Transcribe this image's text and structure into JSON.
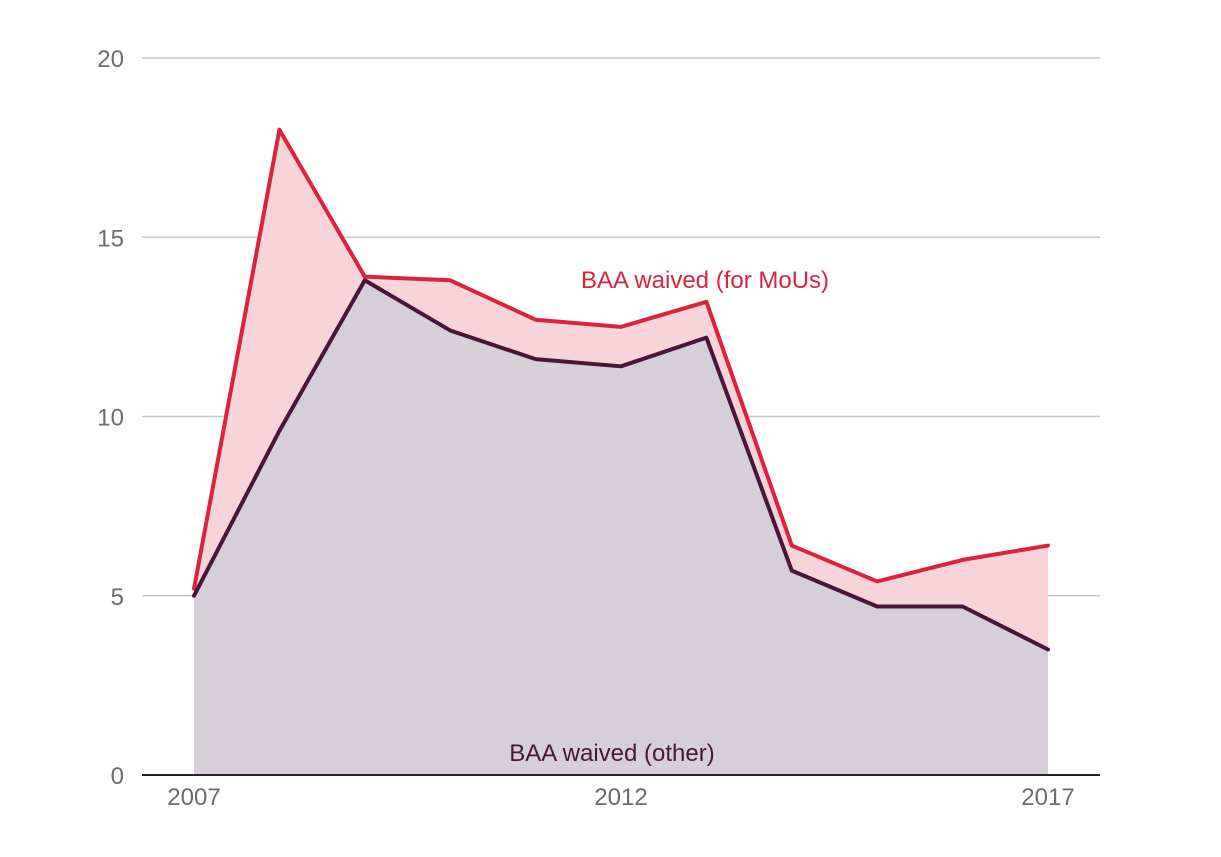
{
  "chart_data": {
    "type": "area",
    "x": [
      2007,
      2008,
      2009,
      2010,
      2011,
      2012,
      2013,
      2014,
      2015,
      2016,
      2017
    ],
    "series": [
      {
        "name": "BAA waived (for MoUs)",
        "values": [
          5.2,
          18.0,
          13.9,
          13.8,
          12.7,
          12.5,
          13.2,
          6.4,
          5.4,
          6.0,
          6.4
        ],
        "color": "#d9233f",
        "fill": "#f6d4da"
      },
      {
        "name": "BAA waived (other)",
        "values": [
          5.0,
          9.6,
          13.8,
          12.4,
          11.6,
          11.4,
          12.2,
          5.7,
          4.7,
          4.7,
          3.5
        ],
        "color": "#4a1536",
        "fill": "#d7cfd8"
      }
    ],
    "ylim": [
      0,
      20
    ],
    "yticks": [
      "0",
      "5",
      "10",
      "15",
      "20"
    ],
    "xticks": [
      "2007",
      "2012",
      "2017"
    ],
    "grid": true
  }
}
